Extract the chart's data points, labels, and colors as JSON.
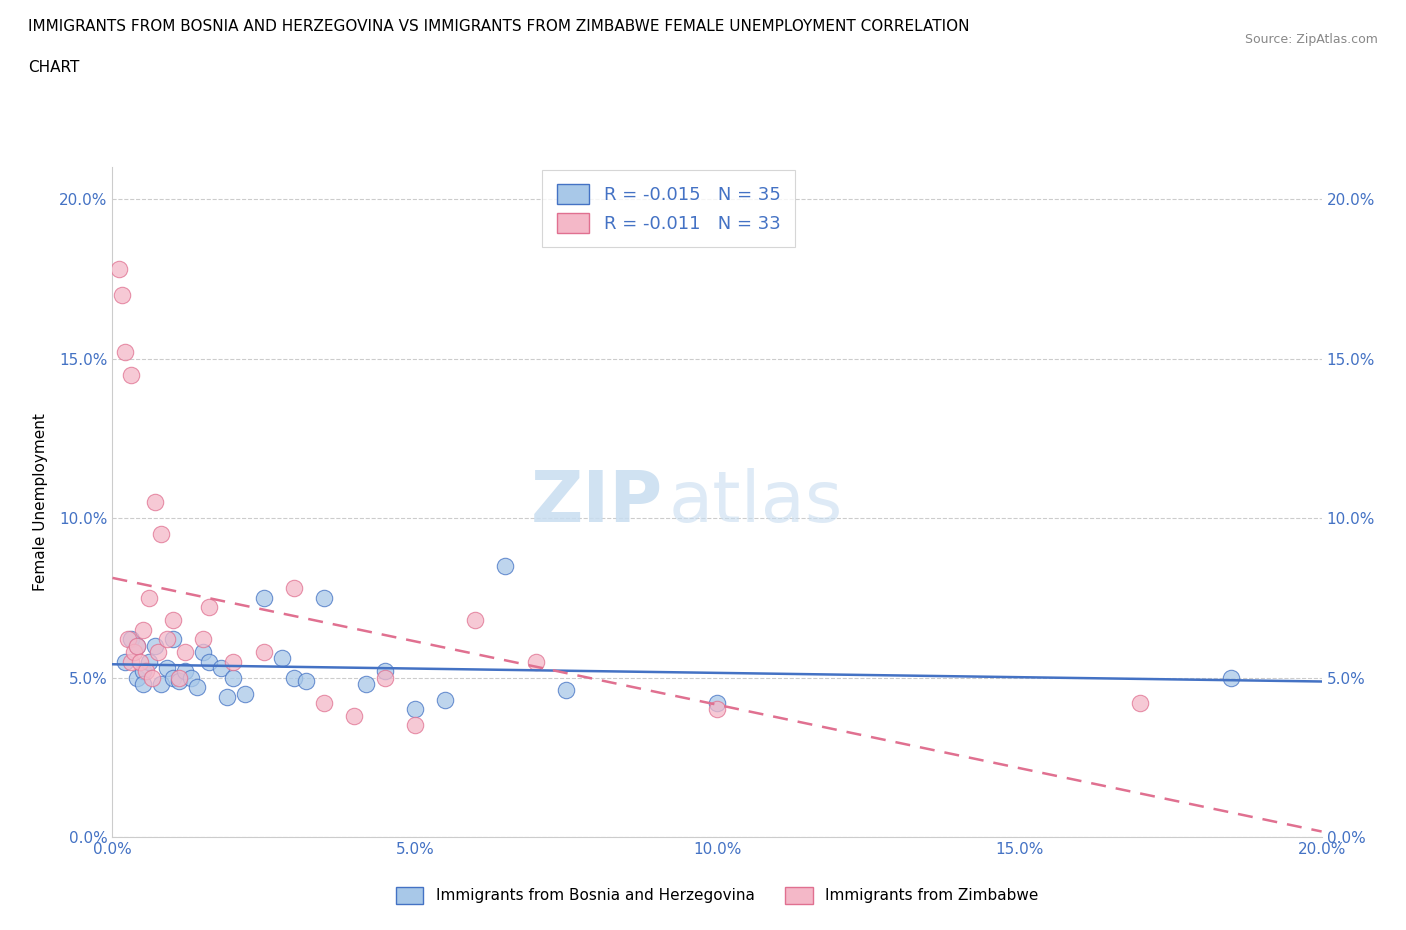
{
  "title_line1": "IMMIGRANTS FROM BOSNIA AND HERZEGOVINA VS IMMIGRANTS FROM ZIMBABWE FEMALE UNEMPLOYMENT CORRELATION",
  "title_line2": "CHART",
  "source": "Source: ZipAtlas.com",
  "ylabel": "Female Unemployment",
  "ytick_values": [
    0.0,
    5.0,
    10.0,
    15.0,
    20.0
  ],
  "xmin": 0.0,
  "xmax": 20.0,
  "ymin": 0.0,
  "ymax": 21.0,
  "legend_label_1": "Immigrants from Bosnia and Herzegovina",
  "legend_label_2": "Immigrants from Zimbabwe",
  "r1": -0.015,
  "n1": 35,
  "r2": -0.011,
  "n2": 33,
  "color_bosnia": "#a8c8e8",
  "color_zimbabwe": "#f4b8c8",
  "line_color_bosnia": "#4472c4",
  "line_color_zimbabwe": "#e07090",
  "watermark_zip": "ZIP",
  "watermark_atlas": "atlas",
  "bosnia_x": [
    0.2,
    0.3,
    0.4,
    0.4,
    0.5,
    0.5,
    0.6,
    0.7,
    0.8,
    0.9,
    1.0,
    1.0,
    1.1,
    1.2,
    1.3,
    1.4,
    1.5,
    1.6,
    1.8,
    1.9,
    2.0,
    2.2,
    2.5,
    2.8,
    3.0,
    3.2,
    3.5,
    4.2,
    4.5,
    5.0,
    5.5,
    6.5,
    7.5,
    10.0,
    18.5
  ],
  "bosnia_y": [
    5.5,
    6.2,
    5.0,
    6.0,
    5.2,
    4.8,
    5.5,
    6.0,
    4.8,
    5.3,
    5.0,
    6.2,
    4.9,
    5.2,
    5.0,
    4.7,
    5.8,
    5.5,
    5.3,
    4.4,
    5.0,
    4.5,
    7.5,
    5.6,
    5.0,
    4.9,
    7.5,
    4.8,
    5.2,
    4.0,
    4.3,
    8.5,
    4.6,
    4.2,
    5.0
  ],
  "zimbabwe_x": [
    0.1,
    0.15,
    0.2,
    0.25,
    0.3,
    0.3,
    0.35,
    0.4,
    0.45,
    0.5,
    0.55,
    0.6,
    0.65,
    0.7,
    0.75,
    0.8,
    0.9,
    1.0,
    1.1,
    1.2,
    1.5,
    1.6,
    2.0,
    2.5,
    3.0,
    3.5,
    4.0,
    4.5,
    5.0,
    6.0,
    7.0,
    10.0,
    17.0
  ],
  "zimbabwe_y": [
    17.8,
    17.0,
    15.2,
    6.2,
    5.5,
    14.5,
    5.8,
    6.0,
    5.5,
    6.5,
    5.2,
    7.5,
    5.0,
    10.5,
    5.8,
    9.5,
    6.2,
    6.8,
    5.0,
    5.8,
    6.2,
    7.2,
    5.5,
    5.8,
    7.8,
    4.2,
    3.8,
    5.0,
    3.5,
    6.8,
    5.5,
    4.0,
    4.2
  ]
}
